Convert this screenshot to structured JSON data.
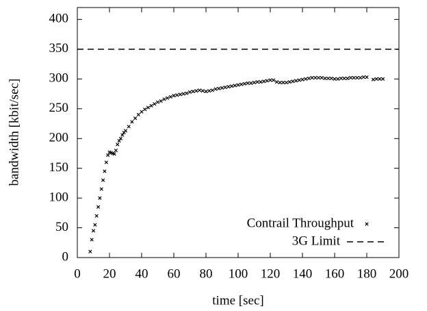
{
  "chart_data": {
    "type": "scatter",
    "x_label": "time [sec]",
    "y_label": "bandwidth [kbit/sec]",
    "xlim": [
      0,
      200
    ],
    "ylim": [
      0,
      420
    ],
    "xticks": [
      0,
      20,
      40,
      60,
      80,
      100,
      120,
      140,
      160,
      180,
      200
    ],
    "yticks": [
      0,
      50,
      100,
      150,
      200,
      250,
      300,
      350,
      400
    ],
    "legend": "lower right",
    "series": [
      {
        "name": "Contrail Throughput",
        "style": "points",
        "color": "#000000",
        "x": [
          8,
          9,
          10,
          11,
          12,
          13,
          14,
          15,
          16,
          17,
          18,
          19,
          20,
          21,
          22,
          23,
          24,
          25,
          26,
          27,
          28,
          29,
          30,
          32,
          34,
          36,
          38,
          40,
          42,
          44,
          46,
          48,
          50,
          52,
          54,
          56,
          58,
          60,
          62,
          64,
          66,
          68,
          70,
          72,
          74,
          76,
          78,
          80,
          82,
          84,
          86,
          88,
          90,
          92,
          94,
          96,
          98,
          100,
          102,
          104,
          106,
          108,
          110,
          112,
          114,
          116,
          118,
          120,
          122,
          124,
          126,
          128,
          130,
          132,
          134,
          136,
          138,
          140,
          142,
          144,
          146,
          148,
          150,
          152,
          154,
          156,
          158,
          160,
          162,
          164,
          166,
          168,
          170,
          172,
          174,
          176,
          178,
          180,
          184,
          186,
          188,
          190
        ],
        "values": [
          10,
          30,
          45,
          55,
          70,
          85,
          100,
          115,
          130,
          145,
          160,
          172,
          177,
          176,
          175,
          174,
          180,
          190,
          196,
          200,
          206,
          210,
          213,
          220,
          228,
          234,
          240,
          245,
          249,
          252,
          255,
          258,
          261,
          263,
          266,
          268,
          270,
          272,
          273,
          274,
          275,
          276,
          278,
          279,
          280,
          281,
          280,
          279,
          280,
          281,
          283,
          284,
          285,
          286,
          287,
          288,
          289,
          290,
          291,
          292,
          293,
          293,
          294,
          295,
          295,
          296,
          297,
          298,
          298,
          295,
          294,
          294,
          294,
          295,
          296,
          297,
          298,
          299,
          300,
          301,
          302,
          302,
          302,
          302,
          301,
          301,
          301,
          300,
          300,
          301,
          301,
          301,
          302,
          302,
          302,
          302,
          303,
          303,
          299,
          300,
          300,
          300
        ]
      },
      {
        "name": "3G Limit",
        "style": "dashed",
        "color": "#000000",
        "x": [
          0,
          200
        ],
        "values": [
          350,
          350
        ]
      }
    ]
  }
}
